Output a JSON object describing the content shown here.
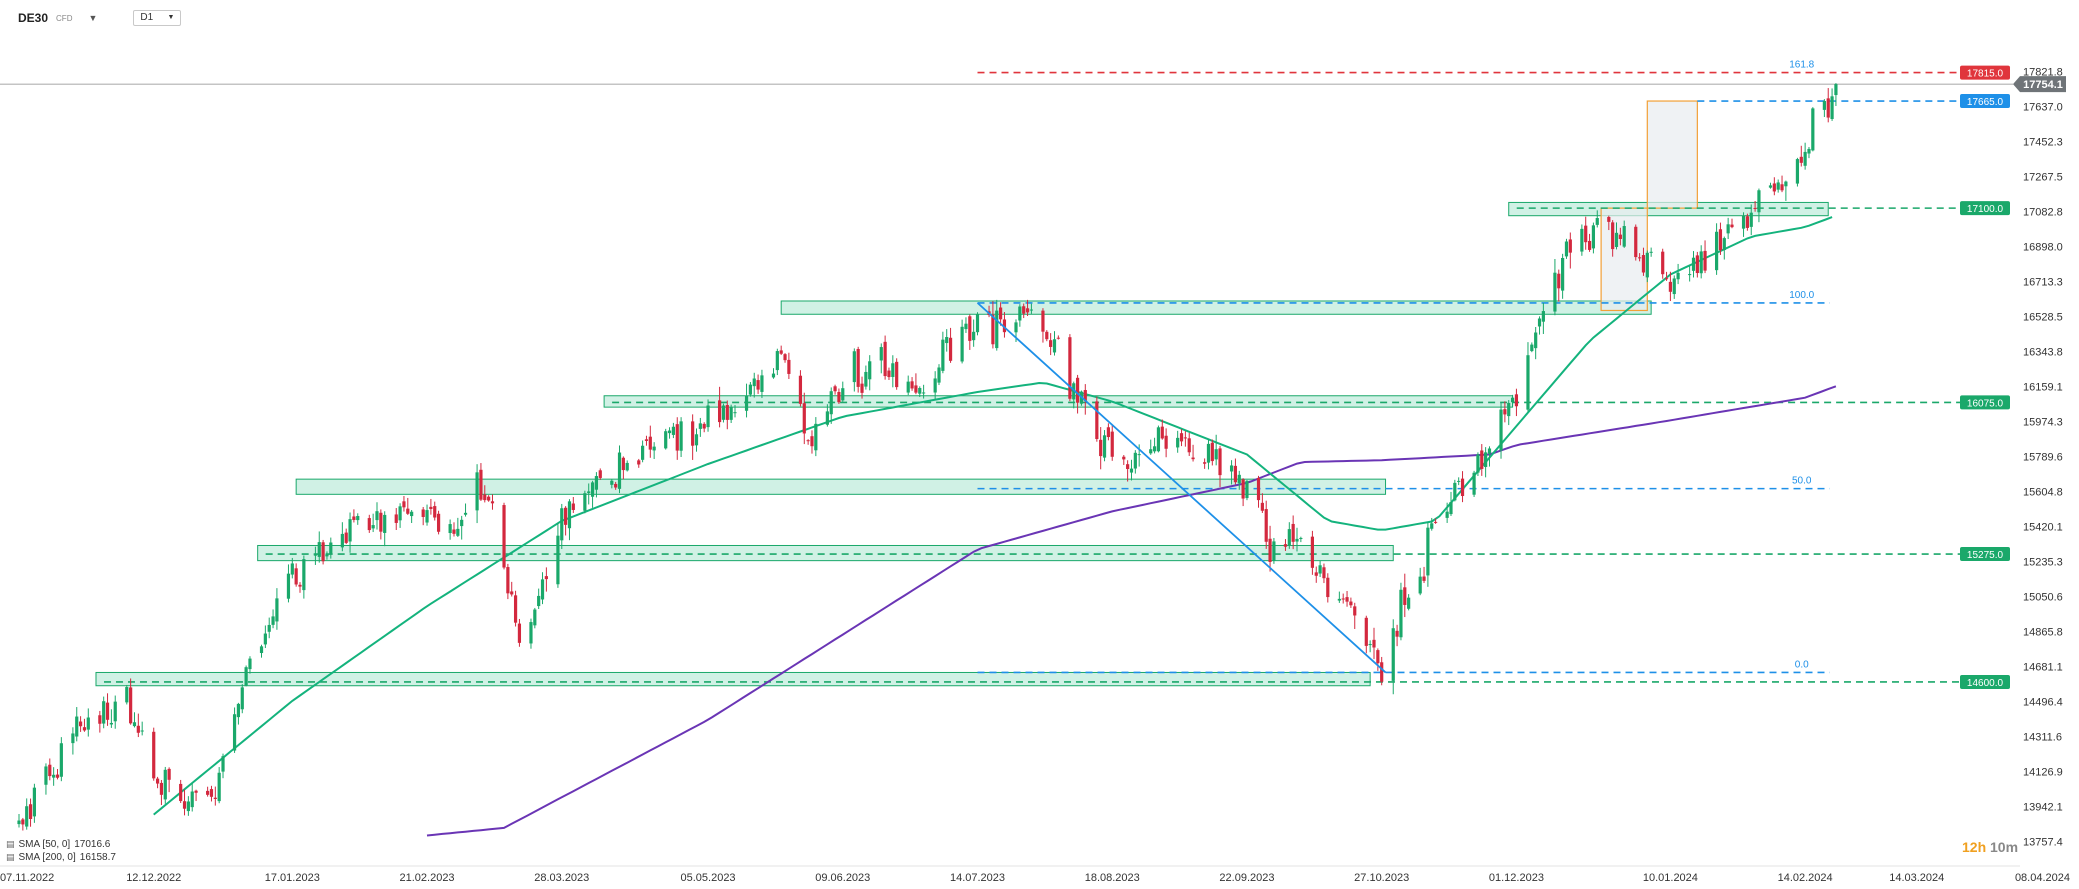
{
  "header": {
    "symbol": "DE30",
    "instrument_type": "CFD",
    "timeframe": "D1"
  },
  "timer": {
    "hours": "12h",
    "minutes": "10m"
  },
  "legend": [
    {
      "label": "SMA [50, 0]",
      "value": "17016.6"
    },
    {
      "label": "SMA [200, 0]",
      "value": "16158.7"
    }
  ],
  "chart_data": {
    "type": "candlestick",
    "ylim": [
      13650,
      17900
    ],
    "y_tick_labels": [
      "17821.8",
      "17637.0",
      "17452.3",
      "17267.5",
      "17082.8",
      "16898.0",
      "16713.3",
      "16528.5",
      "16343.8",
      "16159.1",
      "15974.3",
      "15789.6",
      "15604.8",
      "15420.1",
      "15235.3",
      "15050.6",
      "14865.8",
      "14681.1",
      "14496.4",
      "14311.6",
      "14126.9",
      "13942.1",
      "13757.4"
    ],
    "x_tick_labels": [
      "07.11.2022",
      "12.12.2022",
      "17.01.2023",
      "21.02.2023",
      "28.03.2023",
      "05.05.2023",
      "09.06.2023",
      "14.07.2023",
      "18.08.2023",
      "22.09.2023",
      "27.10.2023",
      "01.12.2023",
      "10.01.2024",
      "14.02.2024",
      "14.03.2024",
      "08.04.2024"
    ],
    "price_path": {
      "dates": [
        "07.11.2022",
        "21.11.2022",
        "28.11.2022",
        "05.12.2022",
        "12.12.2022",
        "20.12.2022",
        "28.12.2022",
        "05.01.2023",
        "17.01.2023",
        "03.02.2023",
        "21.02.2023",
        "28.02.2023",
        "07.03.2023",
        "14.03.2023",
        "17.03.2023",
        "28.03.2023",
        "20.04.2023",
        "05.05.2023",
        "25.05.2023",
        "01.06.2023",
        "09.06.2023",
        "19.06.2023",
        "26.06.2023",
        "14.07.2023",
        "31.07.2023",
        "18.08.2023",
        "04.09.2023",
        "22.09.2023",
        "29.09.2023",
        "06.10.2023",
        "13.10.2023",
        "20.10.2023",
        "27.10.2023",
        "10.11.2023",
        "01.12.2023",
        "08.12.2023",
        "15.12.2023",
        "22.12.2023",
        "29.12.2023",
        "10.01.2024",
        "17.01.2024",
        "31.01.2024",
        "14.02.2024",
        "16.02.2024",
        "20.02.2024",
        "22.02.2024"
      ],
      "closes": [
        13900,
        14300,
        14450,
        14480,
        14150,
        13950,
        14050,
        14650,
        15150,
        15400,
        15550,
        15400,
        15650,
        15200,
        14750,
        15450,
        15850,
        15950,
        16300,
        15900,
        16200,
        16300,
        16100,
        16500,
        16500,
        15750,
        15900,
        15650,
        15250,
        15350,
        15100,
        14950,
        14680,
        15400,
        16100,
        16600,
        16900,
        17000,
        16950,
        16700,
        16800,
        17100,
        17350,
        17550,
        17700,
        17755
      ]
    },
    "sma_50": {
      "dates": [
        "12.12.2022",
        "17.01.2023",
        "21.02.2023",
        "28.03.2023",
        "05.05.2023",
        "09.06.2023",
        "14.07.2023",
        "31.07.2023",
        "18.08.2023",
        "22.09.2023",
        "13.10.2023",
        "27.10.2023",
        "10.11.2023",
        "01.12.2023",
        "20.12.2023",
        "10.01.2024",
        "31.01.2024",
        "14.02.2024",
        "22.02.2024"
      ],
      "values": [
        13900,
        14500,
        15000,
        15450,
        15750,
        16000,
        16130,
        16180,
        16080,
        15800,
        15450,
        15400,
        15450,
        15950,
        16400,
        16750,
        16950,
        17000,
        17060
      ]
    },
    "sma_200": {
      "dates": [
        "21.02.2023",
        "13.03.2023",
        "05.05.2023",
        "14.07.2023",
        "18.08.2023",
        "22.09.2023",
        "06.10.2023",
        "27.10.2023",
        "24.11.2023",
        "01.12.2023",
        "10.01.2024",
        "14.02.2024",
        "22.02.2024"
      ],
      "values": [
        13790,
        13830,
        14400,
        15300,
        15500,
        15650,
        15760,
        15770,
        15800,
        15850,
        15980,
        16100,
        16160
      ]
    },
    "horizontal_levels": [
      {
        "price": 17815.0,
        "label": "17815.0",
        "color": "#e0353c",
        "style": "dashed"
      },
      {
        "price": 17665.0,
        "label": "17665.0",
        "color": "#1e90e8",
        "style": "dashed"
      },
      {
        "price": 17100.0,
        "label": "17100.0",
        "color": "#1aa86a",
        "style": "dashed"
      },
      {
        "price": 16075.0,
        "label": "16075.0",
        "color": "#1aa86a",
        "style": "dashed"
      },
      {
        "price": 15275.0,
        "label": "15275.0",
        "color": "#1aa86a",
        "style": "dashed"
      },
      {
        "price": 14600.0,
        "label": "14600.0",
        "color": "#1aa86a",
        "style": "dashed"
      }
    ],
    "current_price": {
      "price": 17754.1,
      "label": "17754.1"
    },
    "support_zones": [
      {
        "start": "27.11.2022",
        "end": "24.10.2023",
        "low": 14580,
        "high": 14650
      },
      {
        "start": "08.01.2023",
        "end": "30.10.2023",
        "low": 15240,
        "high": 15320
      },
      {
        "start": "18.01.2023",
        "end": "28.10.2023",
        "low": 15590,
        "high": 15670
      },
      {
        "start": "08.04.2023",
        "end": "30.11.2023",
        "low": 16050,
        "high": 16110
      },
      {
        "start": "24.05.2023",
        "end": "05.01.2024",
        "low": 16540,
        "high": 16610
      },
      {
        "start": "29.11.2023",
        "end": "20.02.2024",
        "low": 17060,
        "high": 17130
      }
    ],
    "fibonacci": {
      "from_date": "14.07.2023",
      "to_date": "28.10.2023",
      "label_date": "10.02.2024",
      "levels": [
        {
          "label": "161.8",
          "price": 17815
        },
        {
          "label": "100.0",
          "price": 16600
        },
        {
          "label": "50.0",
          "price": 15620
        },
        {
          "label": "0.0",
          "price": 14650
        }
      ]
    },
    "trend_line": {
      "from": {
        "date": "14.07.2023",
        "price": 16600
      },
      "to": {
        "date": "28.10.2023",
        "price": 14650
      }
    },
    "measure_boxes": [
      {
        "start": "23.12.2023",
        "end": "04.01.2024",
        "low": 16560,
        "high": 17100
      },
      {
        "start": "04.01.2024",
        "end": "17.01.2024",
        "low": 17100,
        "high": 17665
      }
    ],
    "colors": {
      "bull": "#1aa86a",
      "bear": "#d3283e",
      "sma50": "#14b37d",
      "sma200": "#6a35b5",
      "fib": "#1e90e8",
      "zone_fill": "#c8efe0",
      "zone_stroke": "#1aa86a",
      "box": "#f2a037"
    }
  }
}
